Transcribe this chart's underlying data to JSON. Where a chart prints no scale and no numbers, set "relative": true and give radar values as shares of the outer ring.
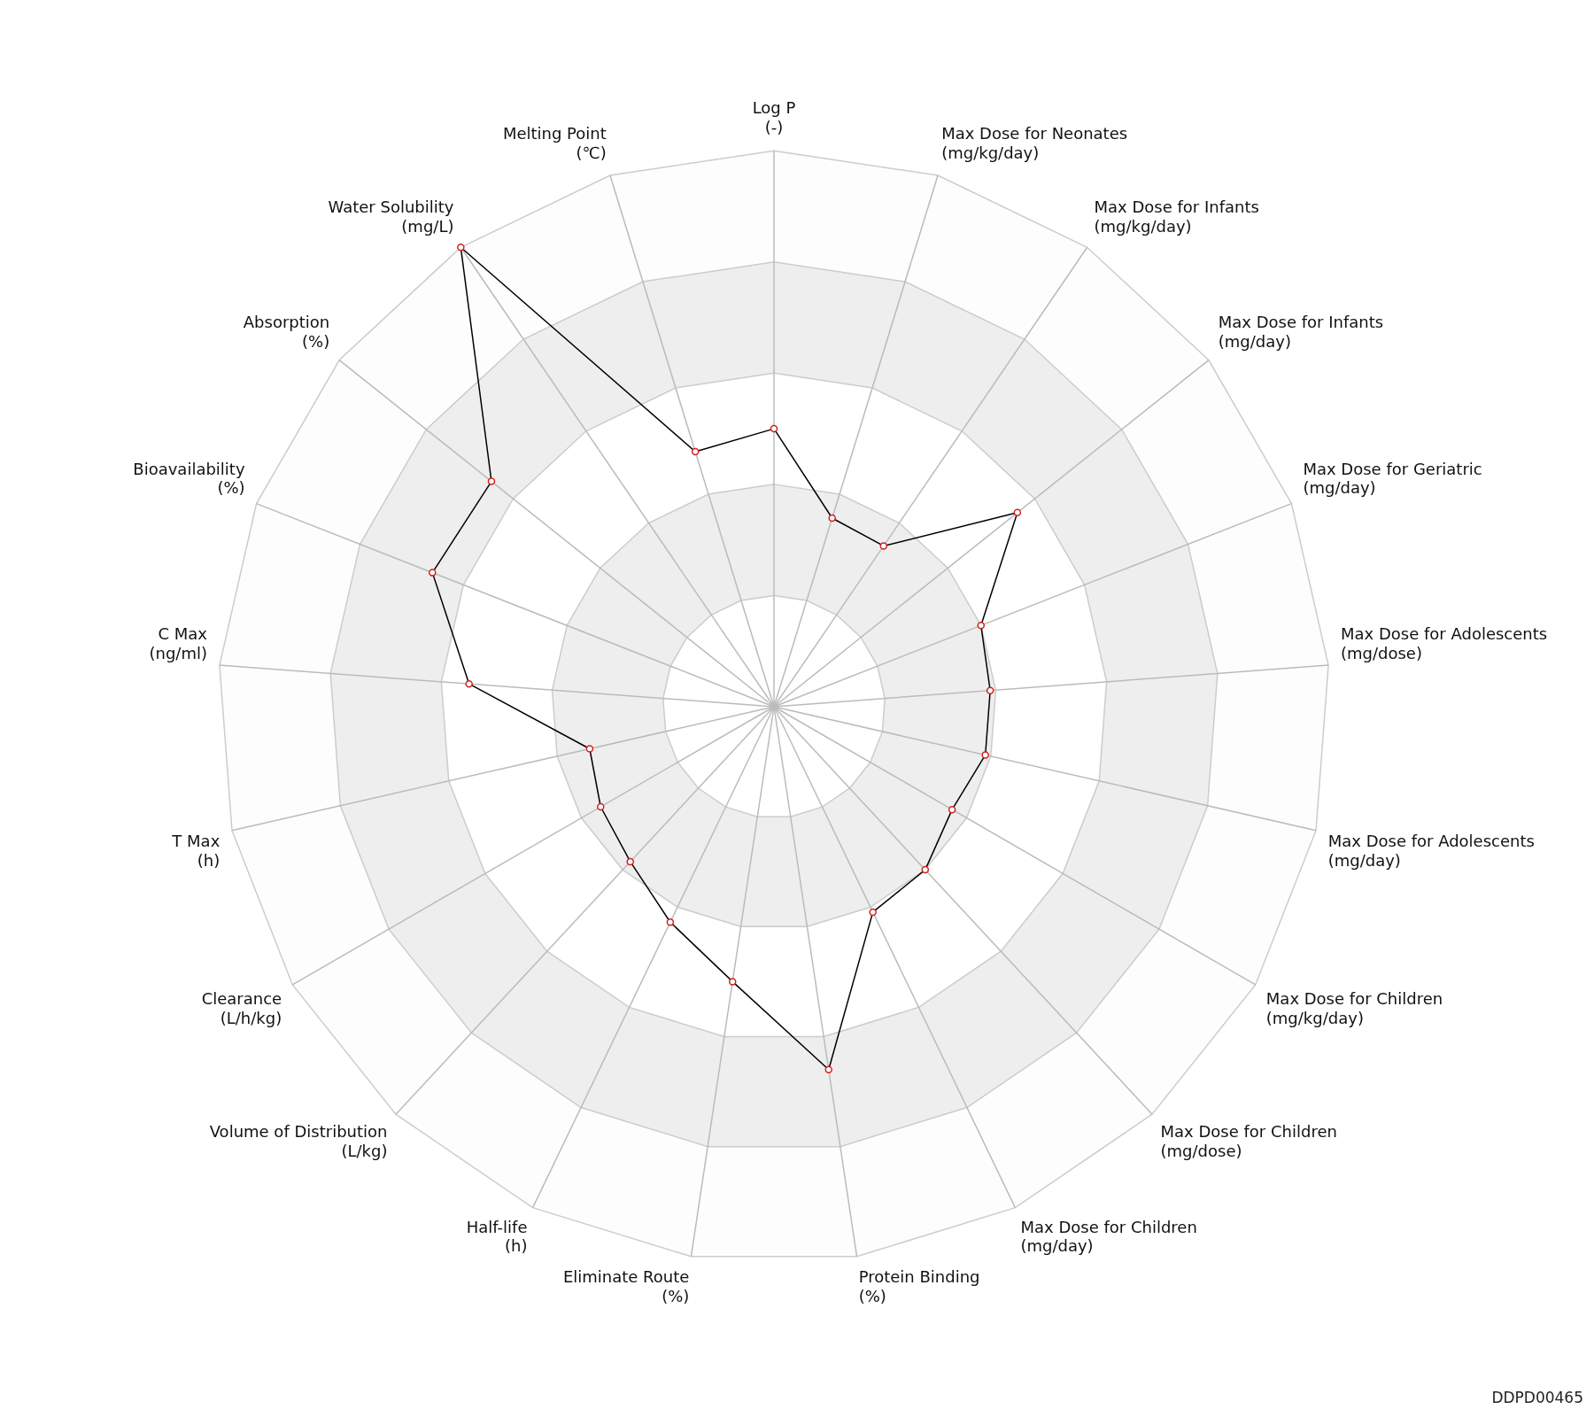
{
  "chart_data": {
    "type": "radar",
    "relative": true,
    "grid": true,
    "marker": "circle",
    "line_style": "solid",
    "categories": [
      "Log P\n(-)",
      "Max Dose for Neonates\n(mg/kg/day)",
      "Max Dose for Infants\n(mg/kg/day)",
      "Max Dose for Infants\n(mg/day)",
      "Max Dose for Geriatric\n(mg/day)",
      "Max Dose for Adolescents\n(mg/dose)",
      "Max Dose for Adolescents\n(mg/day)",
      "Max Dose for Children\n(mg/kg/day)",
      "Max Dose for Children\n(mg/dose)",
      "Max Dose for Children\n(mg/day)",
      "Protein Binding\n(%)",
      "Eliminate Route\n(%)",
      "Half-life\n(h)",
      "Volume of Distribution\n(L/kg)",
      "Clearance\n(L/h/kg)",
      "T Max\n(h)",
      "C Max\n(ng/ml)",
      "Bioavailability\n(%)",
      "Absorption\n(%)",
      "Water Solubility\n(mg/L)",
      "Melting Point\n(℃)"
    ],
    "series": [
      {
        "color": "#000000",
        "values": [
          0.5,
          0.355,
          0.35,
          0.56,
          0.4,
          0.39,
          0.39,
          0.37,
          0.4,
          0.41,
          0.66,
          0.5,
          0.43,
          0.38,
          0.36,
          0.34,
          0.55,
          0.66,
          0.65,
          1.0,
          0.48
        ]
      }
    ],
    "annotations": [
      "DDPD00465"
    ]
  }
}
